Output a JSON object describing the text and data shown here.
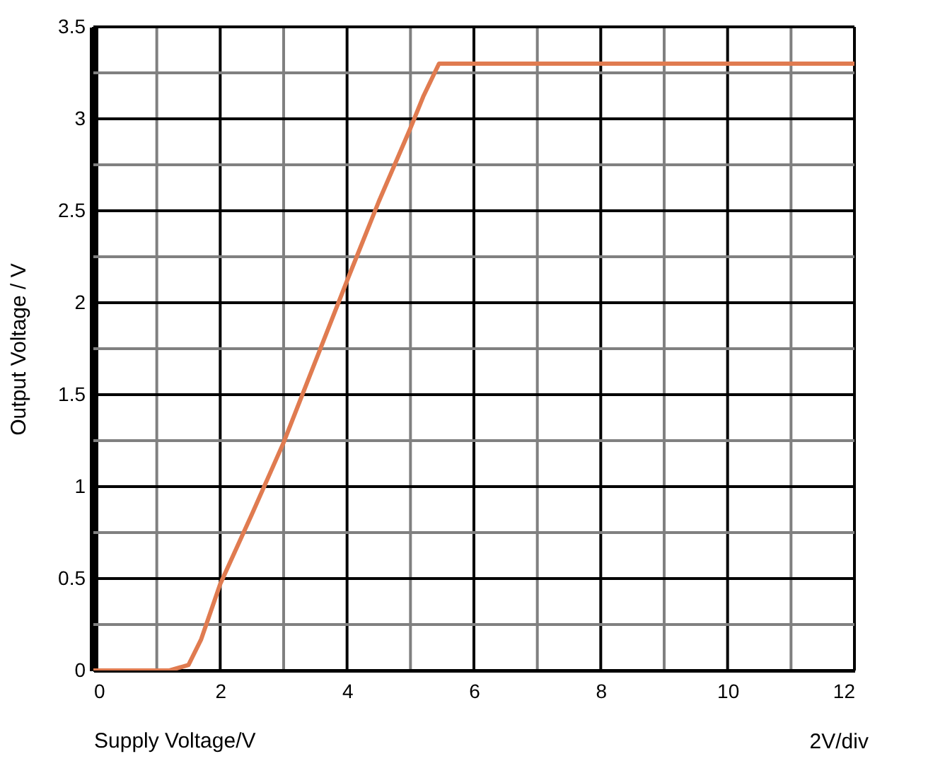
{
  "chart_data": {
    "type": "line",
    "xlabel": "Supply Voltage/V",
    "ylabel": "Output Voltage / V",
    "annotations": [
      "2V/div"
    ],
    "x": [
      0,
      1.2,
      1.5,
      1.7,
      2,
      2.5,
      3,
      3.5,
      4,
      4.5,
      5,
      5.2,
      5.45,
      12
    ],
    "series": [
      {
        "color": "#e07b50",
        "values": [
          0,
          0,
          0.03,
          0.17,
          0.47,
          0.85,
          1.24,
          1.68,
          2.12,
          2.55,
          2.95,
          3.12,
          3.3,
          3.3
        ]
      }
    ],
    "xlim": [
      0,
      12
    ],
    "ylim": [
      0,
      3.5
    ],
    "xticks": [
      0,
      {
        "value": 1,
        "label": null
      },
      2,
      {
        "value": 3,
        "label": null
      },
      4,
      {
        "value": 5,
        "label": null
      },
      6,
      {
        "value": 7,
        "label": null
      },
      8,
      {
        "value": 9,
        "label": null
      },
      10,
      {
        "value": 11,
        "label": null
      },
      12
    ],
    "yticks": [
      0,
      {
        "value": 0.25,
        "label": null
      },
      0.5,
      {
        "value": 0.75,
        "label": null
      },
      1,
      {
        "value": 1.25,
        "label": null
      },
      1.5,
      {
        "value": 1.75,
        "label": null
      },
      2,
      {
        "value": 2.25,
        "label": null
      },
      2.5,
      {
        "value": 2.75,
        "label": null
      },
      3,
      {
        "value": 3.25,
        "label": null
      },
      3.5
    ],
    "grid": true,
    "marker": "none",
    "line_style": "solid"
  }
}
